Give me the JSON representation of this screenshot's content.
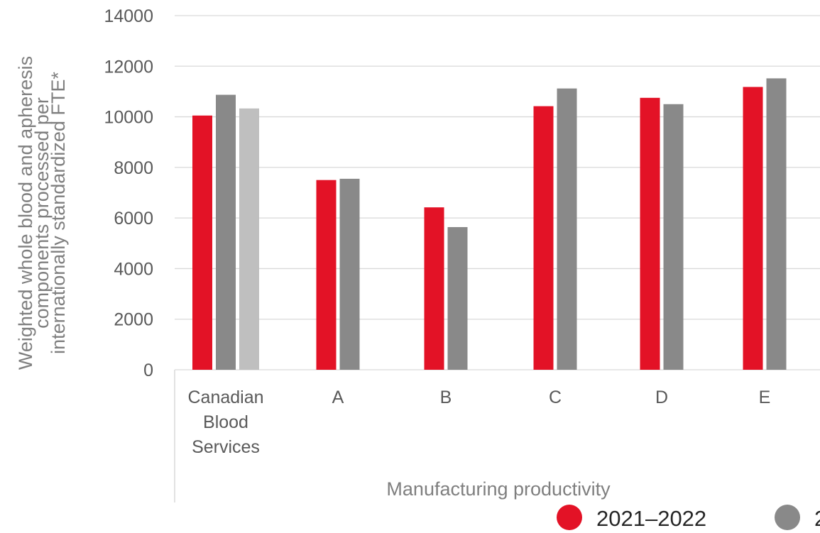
{
  "chart_data": {
    "type": "bar",
    "xlabel": "Manufacturing productivity",
    "ylabel_lines": [
      "Weighted whole blood and apheresis",
      "components processed per",
      "internationally standardized FTE*"
    ],
    "yticks": [
      "0",
      "2000",
      "4000",
      "6000",
      "8000",
      "10000",
      "12000",
      "14000"
    ],
    "ylim": [
      0,
      14000
    ],
    "grid": true,
    "legend_position": "bottom",
    "categories": [
      {
        "label_lines": [
          "Canadian",
          "Blood",
          "Services"
        ]
      },
      {
        "label_lines": [
          "A"
        ]
      },
      {
        "label_lines": [
          "B"
        ]
      },
      {
        "label_lines": [
          "C"
        ]
      },
      {
        "label_lines": [
          "D"
        ]
      },
      {
        "label_lines": [
          "E"
        ]
      }
    ],
    "series": [
      {
        "name": "2021–2022",
        "color": "#e31226",
        "values": [
          10050,
          7500,
          6420,
          10420,
          10750,
          11180
        ]
      },
      {
        "name": "2",
        "color": "#898989",
        "values": [
          10870,
          7550,
          5640,
          11120,
          10500,
          11520
        ]
      },
      {
        "color": "#bfbfbf",
        "values": [
          10330,
          null,
          null,
          null,
          null,
          null
        ]
      }
    ]
  }
}
